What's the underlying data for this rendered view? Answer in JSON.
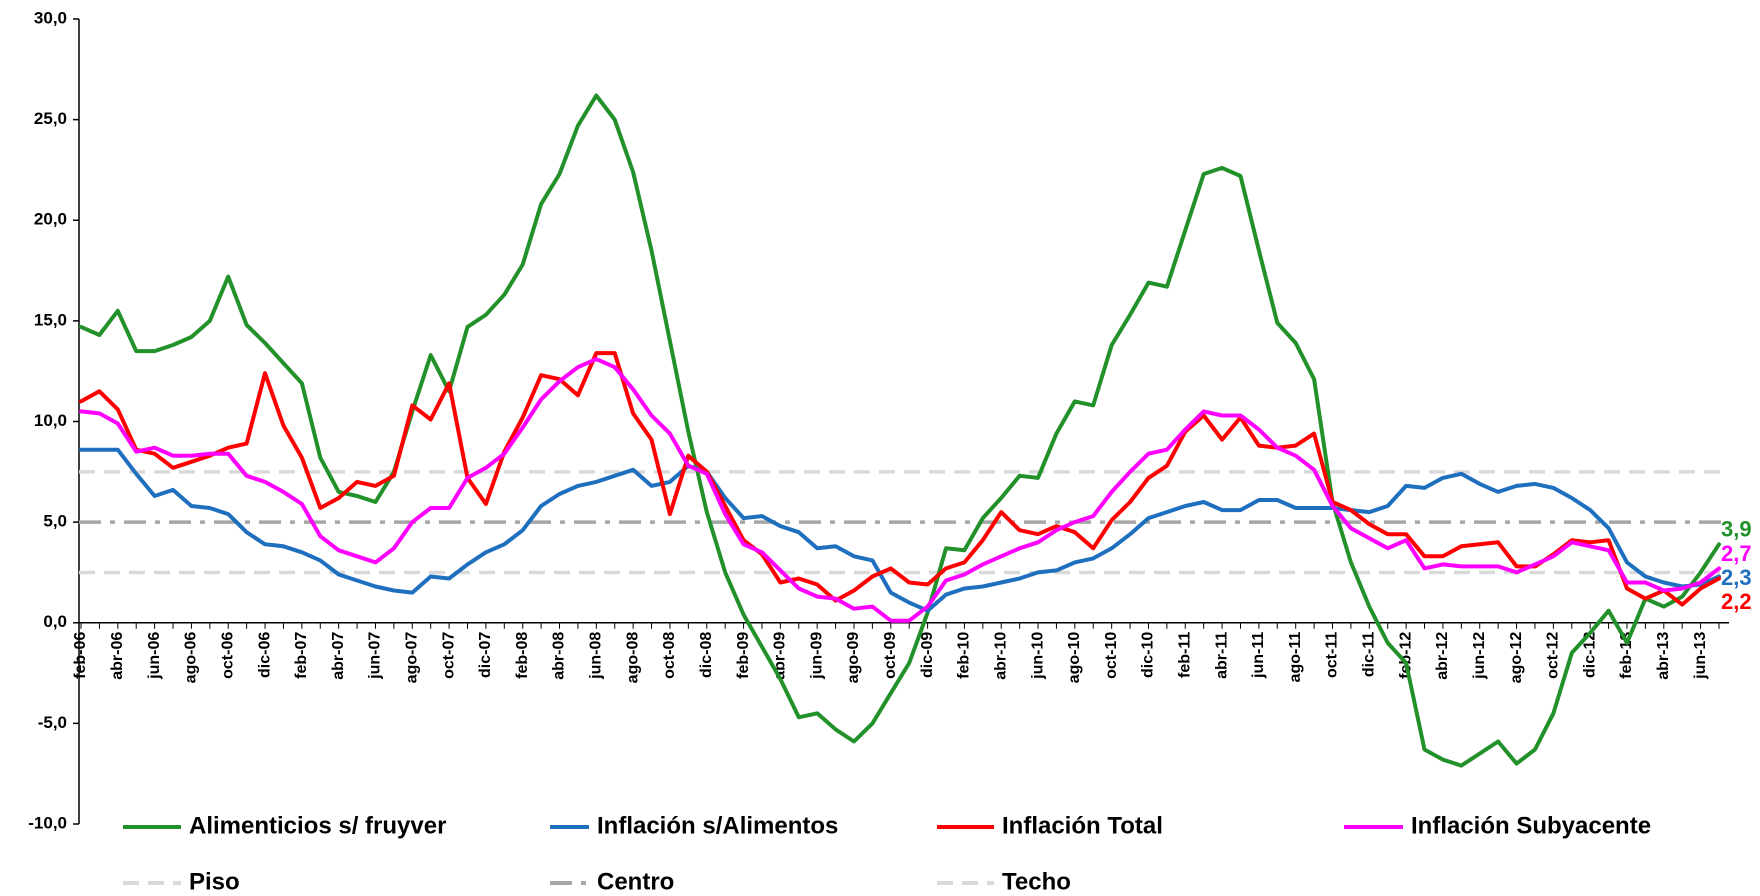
{
  "chart_data": {
    "type": "line",
    "categories": [
      "feb-06",
      null,
      "abr-06",
      null,
      "jun-06",
      null,
      "ago-06",
      null,
      "oct-06",
      null,
      "dic-06",
      null,
      "feb-07",
      null,
      "abr-07",
      null,
      "jun-07",
      null,
      "ago-07",
      null,
      "oct-07",
      null,
      "dic-07",
      null,
      "feb-08",
      null,
      "abr-08",
      null,
      "jun-08",
      null,
      "ago-08",
      null,
      "oct-08",
      null,
      "dic-08",
      null,
      "feb-09",
      null,
      "abr-09",
      null,
      "jun-09",
      null,
      "ago-09",
      null,
      "oct-09",
      null,
      "dic-09",
      null,
      "feb-10",
      null,
      "abr-10",
      null,
      "jun-10",
      null,
      "ago-10",
      null,
      "oct-10",
      null,
      "dic-10",
      null,
      "feb-11",
      null,
      "abr-11",
      null,
      "jun-11",
      null,
      "ago-11",
      null,
      "oct-11",
      null,
      "dic-11",
      null,
      "feb-12",
      null,
      "abr-12",
      null,
      "jun-12",
      null,
      "ago-12",
      null,
      "oct-12",
      null,
      "dic-12",
      null,
      "feb-13",
      null,
      "abr-13",
      null,
      "jun-13",
      null
    ],
    "series": [
      {
        "name": "Alimenticios s/ fruyver",
        "color": "#23912a",
        "end_label": "3,9",
        "values": [
          14.7,
          14.3,
          15.5,
          13.5,
          13.5,
          13.8,
          14.2,
          15.0,
          17.2,
          14.8,
          13.9,
          12.9,
          11.9,
          8.2,
          6.5,
          6.3,
          6.0,
          7.5,
          10.5,
          13.3,
          11.5,
          14.7,
          15.3,
          16.3,
          17.8,
          20.8,
          22.3,
          24.7,
          26.2,
          25.0,
          22.4,
          18.5,
          14.0,
          9.5,
          5.5,
          2.5,
          0.4,
          -1.2,
          -2.8,
          -4.7,
          -4.5,
          -5.3,
          -5.9,
          -5.0,
          -3.5,
          -2.0,
          0.5,
          3.7,
          3.6,
          5.2,
          6.2,
          7.3,
          7.2,
          9.4,
          11.0,
          10.8,
          13.8,
          15.3,
          16.9,
          16.7,
          19.5,
          22.3,
          22.6,
          22.2,
          18.5,
          14.9,
          13.9,
          12.1,
          6.0,
          3.0,
          0.8,
          -1.0,
          -2.0,
          -6.3,
          -6.8,
          -7.1,
          -6.5,
          -5.9,
          -7.0,
          -6.3,
          -4.5,
          -1.5,
          -0.5,
          0.6,
          -1.0,
          1.2,
          0.8,
          1.3,
          2.5,
          3.9
        ]
      },
      {
        "name": "Inflación s/Alimentos",
        "color": "#1f6fbf",
        "end_label": "2,3",
        "values": [
          8.6,
          8.6,
          8.6,
          7.4,
          6.3,
          6.6,
          5.8,
          5.7,
          5.4,
          4.5,
          3.9,
          3.8,
          3.5,
          3.1,
          2.4,
          2.1,
          1.8,
          1.6,
          1.5,
          2.3,
          2.2,
          2.9,
          3.5,
          3.9,
          4.6,
          5.8,
          6.4,
          6.8,
          7.0,
          7.3,
          7.6,
          6.8,
          7.0,
          7.8,
          7.5,
          6.2,
          5.2,
          5.3,
          4.8,
          4.5,
          3.7,
          3.8,
          3.3,
          3.1,
          1.5,
          1.0,
          0.6,
          1.4,
          1.7,
          1.8,
          2.0,
          2.2,
          2.5,
          2.6,
          3.0,
          3.2,
          3.7,
          4.4,
          5.2,
          5.5,
          5.8,
          6.0,
          5.6,
          5.6,
          6.1,
          6.1,
          5.7,
          5.7,
          5.7,
          5.6,
          5.5,
          5.8,
          6.8,
          6.7,
          7.2,
          7.4,
          6.9,
          6.5,
          6.8,
          6.9,
          6.7,
          6.2,
          5.6,
          4.7,
          3.0,
          2.3,
          2.0,
          1.8,
          1.9,
          2.3
        ]
      },
      {
        "name": "Inflación Total",
        "color": "#ff0000",
        "end_label": "2,2",
        "values": [
          11.0,
          11.5,
          10.6,
          8.6,
          8.4,
          7.7,
          8.0,
          8.3,
          8.7,
          8.9,
          12.4,
          9.8,
          8.2,
          5.7,
          6.2,
          7.0,
          6.8,
          7.3,
          10.8,
          10.1,
          11.9,
          7.2,
          5.9,
          8.5,
          10.2,
          12.3,
          12.1,
          11.3,
          13.4,
          13.4,
          10.4,
          9.1,
          5.4,
          8.3,
          7.5,
          5.8,
          4.1,
          3.4,
          2.0,
          2.2,
          1.9,
          1.1,
          1.6,
          2.3,
          2.7,
          2.0,
          1.9,
          2.7,
          3.0,
          4.1,
          5.5,
          4.6,
          4.4,
          4.8,
          4.5,
          3.7,
          5.1,
          6.0,
          7.2,
          7.8,
          9.5,
          10.3,
          9.1,
          10.2,
          8.8,
          8.7,
          8.8,
          9.4,
          6.0,
          5.6,
          4.9,
          4.4,
          4.4,
          3.3,
          3.3,
          3.8,
          3.9,
          4.0,
          2.8,
          2.8,
          3.4,
          4.1,
          4.0,
          4.1,
          1.7,
          1.2,
          1.6,
          0.9,
          1.7,
          2.2
        ]
      },
      {
        "name": "Inflación Subyacente",
        "color": "#ff00ff",
        "end_label": "2,7",
        "values": [
          10.5,
          10.4,
          9.9,
          8.5,
          8.7,
          8.3,
          8.3,
          8.4,
          8.4,
          7.3,
          7.0,
          6.5,
          5.9,
          4.3,
          3.6,
          3.3,
          3.0,
          3.7,
          5.0,
          5.7,
          5.7,
          7.2,
          7.7,
          8.4,
          9.7,
          11.1,
          12.0,
          12.7,
          13.1,
          12.7,
          11.6,
          10.3,
          9.4,
          7.8,
          7.4,
          5.4,
          3.9,
          3.5,
          2.6,
          1.7,
          1.3,
          1.2,
          0.7,
          0.8,
          0.1,
          0.1,
          0.8,
          2.1,
          2.4,
          2.9,
          3.3,
          3.7,
          4.0,
          4.6,
          5.0,
          5.3,
          6.5,
          7.5,
          8.4,
          8.6,
          9.6,
          10.5,
          10.3,
          10.3,
          9.6,
          8.7,
          8.3,
          7.6,
          5.8,
          4.7,
          4.2,
          3.7,
          4.1,
          2.7,
          2.9,
          2.8,
          2.8,
          2.8,
          2.5,
          2.9,
          3.3,
          4.0,
          3.8,
          3.6,
          2.0,
          2.0,
          1.6,
          1.7,
          2.0,
          2.7
        ]
      }
    ],
    "reference_lines": [
      {
        "name": "Piso",
        "value": 2.5,
        "color": "#d9d9d9",
        "dash": "dashed"
      },
      {
        "name": "Centro",
        "value": 5,
        "color": "#a6a6a6",
        "dash": "dashdot"
      },
      {
        "name": "Techo",
        "value": 7.5,
        "color": "#d9d9d9",
        "dash": "dashed"
      }
    ],
    "ylim": [
      -10,
      30
    ],
    "yticks": [
      {
        "value": -10,
        "label": "-10,0"
      },
      {
        "value": -5,
        "label": "-5,0"
      },
      {
        "value": 0,
        "label": "0,0"
      },
      {
        "value": 5,
        "label": "5,0"
      },
      {
        "value": 10,
        "label": "10,0"
      },
      {
        "value": 15,
        "label": "15,0"
      },
      {
        "value": 20,
        "label": "20,0"
      },
      {
        "value": 25,
        "label": "25,0"
      },
      {
        "value": 30,
        "label": "30,0"
      }
    ],
    "grid": false,
    "legend": "bottom"
  }
}
